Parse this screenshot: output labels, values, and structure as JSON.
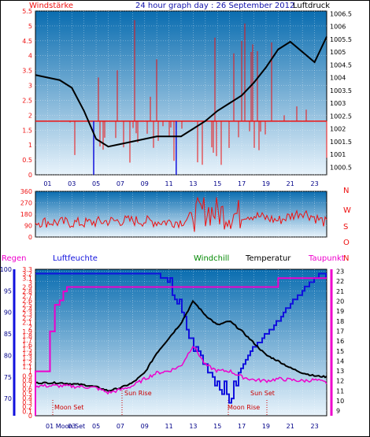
{
  "page_title": "24 hour graph day : 26 September 2012",
  "colors": {
    "red": "#ee1111",
    "blue": "#1111dd",
    "black": "#000000",
    "magenta": "#ee00cc",
    "green": "#008800",
    "navy": "#000088",
    "plot_top": "#0a6db0",
    "plot_bottom": "#e6f2fb"
  },
  "chart_data": [
    {
      "type": "line",
      "title": "24 hour graph day : 26 September 2012",
      "left_label": "Windstärke",
      "right_label": "Luftdruck",
      "x_ticks": [
        "01",
        "03",
        "05",
        "07",
        "09",
        "11",
        "13",
        "15",
        "17",
        "19",
        "21",
        "23"
      ],
      "y_left_ticks": [
        "0",
        "0.5",
        "1",
        "1.5",
        "2",
        "2.5",
        "3",
        "3.5",
        "4",
        "4.5",
        "5",
        "5.5"
      ],
      "y_left_lim": [
        0,
        5.5
      ],
      "y_right_ticks": [
        "1000.5",
        "1001",
        "1001.5",
        "1002",
        "1002.5",
        "1003",
        "1003.5",
        "1004",
        "1004.5",
        "1005",
        "1005.5",
        "1006",
        "1006.5"
      ],
      "y_right_lim": [
        1000.2,
        1006.6
      ],
      "grid": true,
      "series": [
        {
          "name": "Luftdruck",
          "axis": "right",
          "x": [
            0,
            1,
            2,
            3,
            4,
            5,
            6,
            7,
            8,
            9,
            10,
            11,
            12,
            13,
            14,
            15,
            16,
            17,
            18,
            19,
            20,
            21,
            22,
            23,
            24
          ],
          "values": [
            1004.1,
            1004.0,
            1003.9,
            1003.6,
            1002.7,
            1001.6,
            1001.3,
            1001.4,
            1001.5,
            1001.6,
            1001.7,
            1001.7,
            1001.7,
            1002.0,
            1002.3,
            1002.7,
            1003.0,
            1003.3,
            1003.8,
            1004.4,
            1005.1,
            1005.4,
            1005.0,
            1004.6,
            1005.6
          ]
        }
      ]
    },
    {
      "type": "line",
      "left_ticks": [
        "360",
        "270",
        "180",
        "90",
        "0"
      ],
      "right_labels": [
        "N",
        "W",
        "S",
        "O",
        "N"
      ],
      "ylim": [
        0,
        360
      ],
      "grid": true,
      "series": [
        {
          "axis": "left",
          "x": [
            0,
            2,
            4,
            6,
            8,
            10,
            12,
            14,
            16,
            18,
            20,
            22,
            24
          ],
          "values": [
            120,
            115,
            110,
            125,
            130,
            120,
            120,
            210,
            180,
            170,
            130,
            200,
            110
          ]
        }
      ]
    },
    {
      "type": "line",
      "legend": [
        "Regen",
        "Luftfeuchte",
        "Windchill",
        "Temperatur",
        "Taupunkt"
      ],
      "rain_ticks": [
        "0",
        "0.1",
        "0.2",
        "0.3",
        "0.4",
        "0.5",
        "0.6",
        "0.7",
        "0.8",
        "0.9",
        "1",
        "1.1",
        "1.2",
        "1.3",
        "1.4",
        "1.5",
        "1.6",
        "1.7",
        "1.8",
        "1.9",
        "2",
        "2.1",
        "2.2",
        "2.3",
        "2.4",
        "2.5",
        "2.6",
        "2.7",
        "2.8",
        "2.9",
        "3",
        "3.1",
        "3.2",
        "3.3"
      ],
      "rain_lim": [
        0,
        3.3
      ],
      "humidity_ticks": [
        "70",
        "75",
        "80",
        "85",
        "90",
        "95",
        "100"
      ],
      "humidity_lim": [
        66,
        100
      ],
      "temp_ticks": [
        "9",
        "10",
        "11",
        "12",
        "13",
        "14",
        "15",
        "16",
        "17",
        "18",
        "19",
        "20",
        "21",
        "22",
        "23"
      ],
      "temp_lim": [
        8.5,
        23.2
      ],
      "annotations": [
        "Moon Set",
        "Sun Rise",
        "Moon Rise",
        "Sun Set"
      ],
      "bottom_label": "01 Moon Set",
      "series": [
        {
          "name": "Luftfeuchte",
          "axis": "humidity",
          "x": [
            0,
            5,
            8,
            9,
            10,
            11,
            12,
            13,
            14,
            15,
            16,
            17,
            18,
            19,
            20,
            21,
            22,
            23,
            23.5,
            24
          ],
          "values": [
            99,
            99,
            99,
            99,
            99,
            97,
            90,
            82,
            78,
            74,
            70,
            77,
            82,
            85,
            88,
            92,
            95,
            98,
            99,
            98
          ]
        },
        {
          "name": "Temperatur",
          "axis": "temp",
          "x": [
            0,
            2,
            4,
            5,
            6,
            7,
            8,
            9,
            10,
            11,
            12,
            13,
            14,
            15,
            16,
            17,
            18,
            19,
            20,
            21,
            22,
            23,
            24
          ],
          "values": [
            11.8,
            11.8,
            11.6,
            11.4,
            11.0,
            11.3,
            11.8,
            12.8,
            14.8,
            16.3,
            17.8,
            20.0,
            18.6,
            17.6,
            18.0,
            17.0,
            15.8,
            14.6,
            14.0,
            13.3,
            12.8,
            12.5,
            12.4
          ]
        },
        {
          "name": "Taupunkt",
          "axis": "temp",
          "x": [
            0,
            2,
            4,
            5,
            6,
            7,
            8,
            9,
            10,
            11,
            12,
            13,
            14,
            15,
            16,
            17,
            18,
            19,
            20,
            21,
            22,
            23,
            24
          ],
          "values": [
            11.5,
            11.5,
            11.4,
            11.3,
            10.8,
            11.1,
            11.5,
            12.2,
            12.8,
            13.0,
            13.5,
            15.6,
            13.6,
            13.0,
            13.0,
            12.4,
            12.1,
            12.0,
            12.2,
            12.1,
            12.0,
            12.1,
            11.8
          ]
        },
        {
          "name": "Regen",
          "axis": "rain",
          "x": [
            0,
            1.2,
            1.6,
            2.0,
            2.3,
            2.6,
            3.0,
            6,
            10,
            15,
            19.5,
            20,
            23.5,
            24
          ],
          "values": [
            1.0,
            1.9,
            2.5,
            2.6,
            2.8,
            2.9,
            2.9,
            2.9,
            2.9,
            2.9,
            2.9,
            3.1,
            3.1,
            3.1
          ]
        }
      ]
    }
  ]
}
